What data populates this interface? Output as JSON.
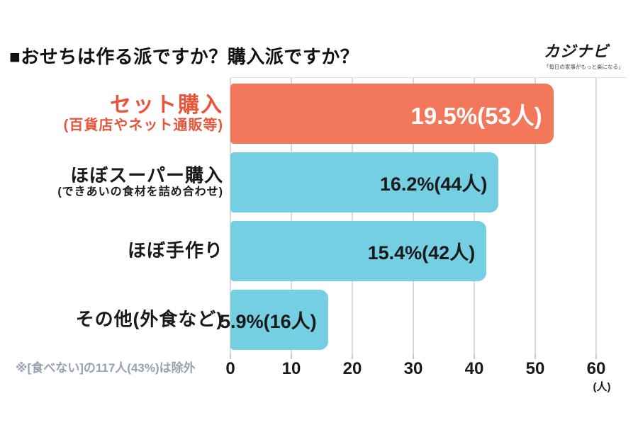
{
  "title": "■おせちは作る派ですか？購入派ですか？",
  "logo": {
    "name": "カジナビ",
    "tagline": "「毎日の家事がもっと楽になる」"
  },
  "footnote": "※[食べない]の117人(43%)は除外",
  "colors": {
    "bar_orange": "#f3775a",
    "bar_cyan": "#74cfe2",
    "label_orange": "#e9553b",
    "grid": "#d8d8d8",
    "footnote_gray": "#98a1ae"
  },
  "chart_data": {
    "type": "bar",
    "orientation": "horizontal",
    "title": "おせちは作る派ですか？購入派ですか？",
    "x_unit": "(人)",
    "xlim": [
      0,
      60
    ],
    "xticks": [
      0,
      10,
      20,
      30,
      40,
      50,
      60
    ],
    "grid": true,
    "bars": [
      {
        "label": "セット購入",
        "sublabel": "(百貨店やネット通販等)",
        "value": 53,
        "percent": 19.5,
        "value_label": "19.5%(53人)",
        "color": "#f3775a",
        "highlight": true
      },
      {
        "label": "ほぼスーパー購入",
        "sublabel": "(できあいの食材を詰め合わせ)",
        "value": 44,
        "percent": 16.2,
        "value_label": "16.2%(44人)",
        "color": "#74cfe2",
        "highlight": false
      },
      {
        "label": "ほぼ手作り",
        "sublabel": "",
        "value": 42,
        "percent": 15.4,
        "value_label": "15.4%(42人)",
        "color": "#74cfe2",
        "highlight": false
      },
      {
        "label": "その他(外食など)",
        "sublabel": "",
        "value": 16,
        "percent": 5.9,
        "value_label": "5.9%(16人)",
        "color": "#74cfe2",
        "highlight": false
      }
    ]
  }
}
